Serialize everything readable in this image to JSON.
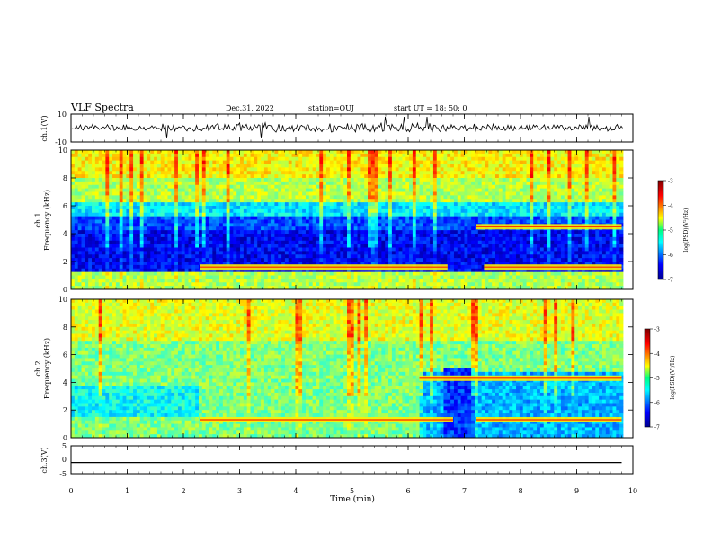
{
  "header": {
    "title": "VLF Spectra",
    "date": "Dec.31, 2022",
    "station": "station=OUJ",
    "start": "start  UT =  18: 50: 0"
  },
  "chart_data": [
    {
      "type": "line",
      "panel": "waveform-ch1",
      "ylabel": "ch.1(V)",
      "ylim": [
        -10,
        10
      ],
      "yticks": [
        "10",
        "-10"
      ],
      "xlim": [
        0,
        10
      ]
    },
    {
      "type": "heatmap",
      "panel": "spectrogram-ch1",
      "ylabel": "ch.1\nFrequency (kHz)",
      "ylim": [
        0,
        10
      ],
      "yticks": [
        "0",
        "2",
        "4",
        "6",
        "8",
        "10"
      ],
      "xlim": [
        0,
        10
      ],
      "colorbar": {
        "label": "log(PSD)(V²/Hz)",
        "range": [
          -7,
          -3
        ],
        "ticks": [
          "-3",
          "-4",
          "-5",
          "-6",
          "-7"
        ]
      },
      "features": [
        {
          "desc": "band",
          "freq_khz": 1.6,
          "t_start": 2.3,
          "t_end": 6.7
        },
        {
          "desc": "band",
          "freq_khz": 1.6,
          "t_start": 7.35,
          "t_end": 9.8
        },
        {
          "desc": "band",
          "freq_khz": 4.5,
          "t_start": 7.2,
          "t_end": 9.8
        }
      ]
    },
    {
      "type": "heatmap",
      "panel": "spectrogram-ch2",
      "ylabel": "ch.2\nFrequency (kHz)",
      "ylim": [
        0,
        10
      ],
      "yticks": [
        "0",
        "2",
        "4",
        "6",
        "8",
        "10"
      ],
      "xlim": [
        0,
        10
      ],
      "colorbar": {
        "label": "log(PSD)(V²/Hz)",
        "range": [
          -7,
          -3
        ],
        "ticks": [
          "-3",
          "-4",
          "-5",
          "-6",
          "-7"
        ]
      },
      "features": [
        {
          "desc": "band",
          "freq_khz": 1.3,
          "t_start": 2.3,
          "t_end": 6.8
        },
        {
          "desc": "band",
          "freq_khz": 1.3,
          "t_start": 7.2,
          "t_end": 9.8
        },
        {
          "desc": "band",
          "freq_khz": 4.3,
          "t_start": 6.2,
          "t_end": 9.8
        }
      ]
    },
    {
      "type": "line",
      "panel": "waveform-ch3",
      "ylabel": "ch.3(V)",
      "ylim": [
        -5,
        5
      ],
      "yticks": [
        "5",
        "0",
        "-5"
      ],
      "xlim": [
        0,
        10
      ],
      "x": [
        0,
        9.8
      ],
      "y": [
        -1,
        -1
      ]
    }
  ],
  "xaxis": {
    "label": "Time  (min)",
    "ticks": [
      "0",
      "1",
      "2",
      "3",
      "4",
      "5",
      "6",
      "7",
      "8",
      "9",
      "10"
    ]
  },
  "colors": {
    "jet_low": "#00008f",
    "jet_mid": "#00ff80",
    "jet_high": "#800000",
    "line": "#000000"
  }
}
